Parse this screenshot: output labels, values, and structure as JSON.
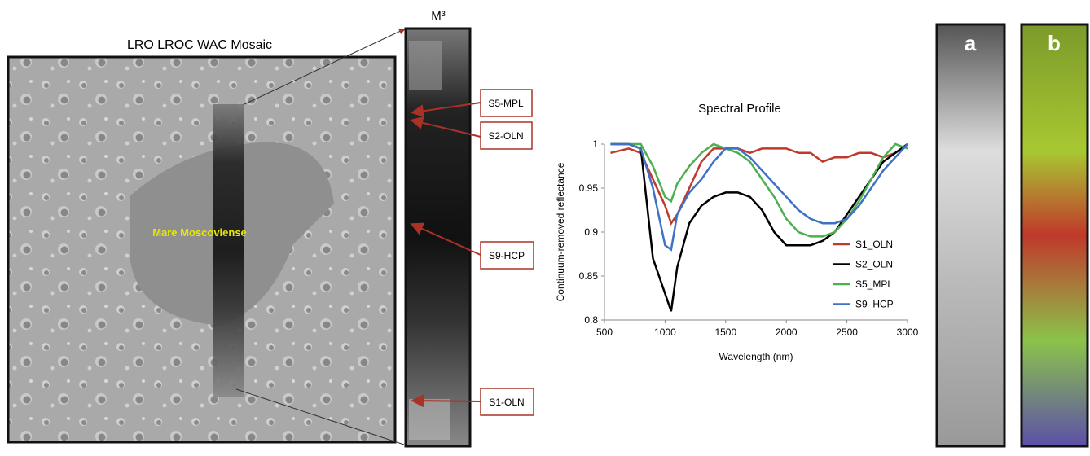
{
  "figure": {
    "mosaic_title": "LRO LROC WAC Mosaic",
    "mare_label": "Mare Moscoviense",
    "strip_title": "M³",
    "sample_labels": [
      "S5-MPL",
      "S2-OLN",
      "S9-HCP",
      "S1-OLN"
    ],
    "panel_labels": [
      "a",
      "b"
    ]
  },
  "chart_data": {
    "type": "line",
    "title": "Spectral Profile",
    "x_label": "Wavelength (nm)",
    "y_label": "Continuum-removed reflectance",
    "x": [
      550,
      700,
      800,
      900,
      1000,
      1050,
      1100,
      1200,
      1300,
      1400,
      1500,
      1600,
      1700,
      1800,
      1900,
      2000,
      2100,
      2200,
      2300,
      2400,
      2500,
      2600,
      2700,
      2800,
      2900,
      3000
    ],
    "series": [
      {
        "name": "S1_OLN",
        "color": "#c0392b",
        "values": [
          0.99,
          0.995,
          0.99,
          0.96,
          0.93,
          0.91,
          0.92,
          0.95,
          0.98,
          0.995,
          0.995,
          0.995,
          0.99,
          0.995,
          0.995,
          0.995,
          0.99,
          0.99,
          0.98,
          0.985,
          0.985,
          0.99,
          0.99,
          0.985,
          0.99,
          1
        ]
      },
      {
        "name": "S2_OLN",
        "color": "#000000",
        "values": [
          1,
          1,
          0.995,
          0.87,
          0.83,
          0.81,
          0.86,
          0.91,
          0.93,
          0.94,
          0.945,
          0.945,
          0.94,
          0.925,
          0.9,
          0.885,
          0.885,
          0.885,
          0.89,
          0.9,
          0.92,
          0.94,
          0.96,
          0.98,
          0.99,
          1
        ]
      },
      {
        "name": "S5_MPL",
        "color": "#4caf50",
        "values": [
          1,
          1,
          1,
          0.975,
          0.94,
          0.935,
          0.955,
          0.975,
          0.99,
          1,
          0.995,
          0.99,
          0.98,
          0.96,
          0.94,
          0.915,
          0.9,
          0.895,
          0.895,
          0.9,
          0.915,
          0.935,
          0.96,
          0.985,
          1,
          0.995
        ]
      },
      {
        "name": "S9_HCP",
        "color": "#3f72c4",
        "values": [
          1,
          1,
          0.995,
          0.95,
          0.885,
          0.88,
          0.92,
          0.945,
          0.96,
          0.98,
          0.995,
          0.995,
          0.985,
          0.97,
          0.955,
          0.94,
          0.925,
          0.915,
          0.91,
          0.91,
          0.915,
          0.93,
          0.95,
          0.97,
          0.985,
          1
        ]
      }
    ],
    "xlim": [
      500,
      3000
    ],
    "xticks": [
      500,
      1000,
      1500,
      2000,
      2500,
      3000
    ],
    "ylim": [
      0.8,
      1
    ],
    "yticks": [
      0.8,
      0.85,
      0.9,
      0.95,
      1
    ],
    "grid": false,
    "legend": "right"
  }
}
